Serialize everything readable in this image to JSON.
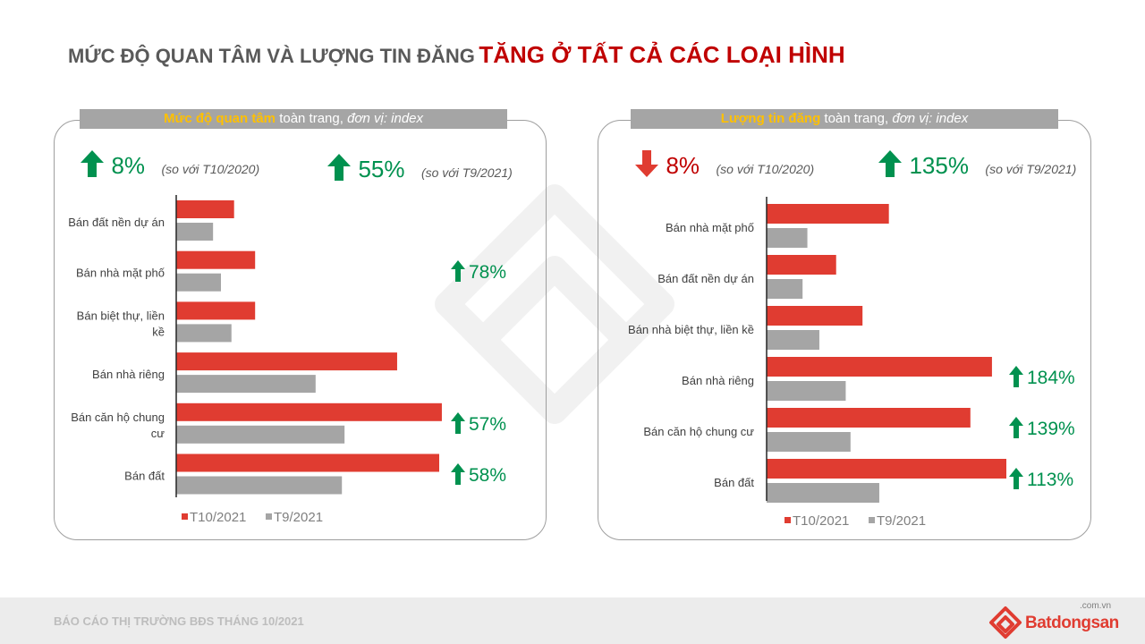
{
  "slide": {
    "title_part1": "MỨC ĐỘ QUAN TÂM VÀ LƯỢNG TIN ĐĂNG",
    "title_part2": "TĂNG Ở TẤT CẢ CÁC LOẠI HÌNH",
    "footer": "BÁO CÁO THỊ TRƯỜNG BĐS THÁNG 10/2021",
    "logo_brand": "Batdongsan",
    "logo_domain": ".com.vn"
  },
  "colors": {
    "red": "#e03c31",
    "gray": "#a5a5a5",
    "green": "#00914f",
    "down": "#e03c31"
  },
  "left_panel": {
    "title_highlight": "Mức độ quan tâm",
    "title_rest": "toàn trang, ",
    "title_unit": "đơn vị: index",
    "kpi1": {
      "direction": "up",
      "value": "8%",
      "note": "(so với T10/2020)"
    },
    "kpi2": {
      "direction": "up",
      "value": "55%",
      "note": "(so với T9/2021)"
    }
  },
  "right_panel": {
    "title_highlight": "Lượng tin đăng",
    "title_rest": "toàn trang, ",
    "title_unit": "đơn vị: index",
    "kpi1": {
      "direction": "down",
      "value": "8%",
      "note": "(so với T10/2020)"
    },
    "kpi2": {
      "direction": "up",
      "value": "135%",
      "note": "(so với T9/2021)"
    }
  },
  "chart_data": [
    {
      "type": "bar",
      "orientation": "horizontal",
      "categories": [
        "Bán đất nền dự án",
        "Bán nhà mặt phố",
        "Bán biệt thự, liền kề",
        "Bán nhà riêng",
        "Bán căn hộ chung cư",
        "Bán đất"
      ],
      "series": [
        {
          "name": "T10/2021",
          "color": "#e03c31",
          "values": [
            22,
            30,
            30,
            84,
            101,
            100
          ]
        },
        {
          "name": "T9/2021",
          "color": "#a5a5a5",
          "values": [
            14,
            17,
            21,
            53,
            64,
            63
          ]
        }
      ],
      "annotations": [
        {
          "category_index": 1,
          "text": "78%"
        },
        {
          "category_index": 4,
          "text": "57%"
        },
        {
          "category_index": 5,
          "text": "58%"
        }
      ],
      "xlim": [
        0,
        100
      ],
      "legend": "bottom-left",
      "grid": false
    },
    {
      "type": "bar",
      "orientation": "horizontal",
      "categories": [
        "Bán nhà mặt phố",
        "Bán đất nền dự án",
        "Bán nhà biệt thự, liền kề",
        "Bán nhà riêng",
        "Bán căn hộ chung cư",
        "Bán đất"
      ],
      "series": [
        {
          "name": "T10/2021",
          "color": "#e03c31",
          "values": [
            51,
            29,
            40,
            94,
            85,
            100
          ]
        },
        {
          "name": "T9/2021",
          "color": "#a5a5a5",
          "values": [
            17,
            15,
            22,
            33,
            35,
            47
          ]
        }
      ],
      "annotations": [
        {
          "category_index": 3,
          "text": "184%"
        },
        {
          "category_index": 4,
          "text": "139%"
        },
        {
          "category_index": 5,
          "text": "113%"
        }
      ],
      "xlim": [
        0,
        100
      ],
      "legend": "bottom-left",
      "grid": false
    }
  ]
}
